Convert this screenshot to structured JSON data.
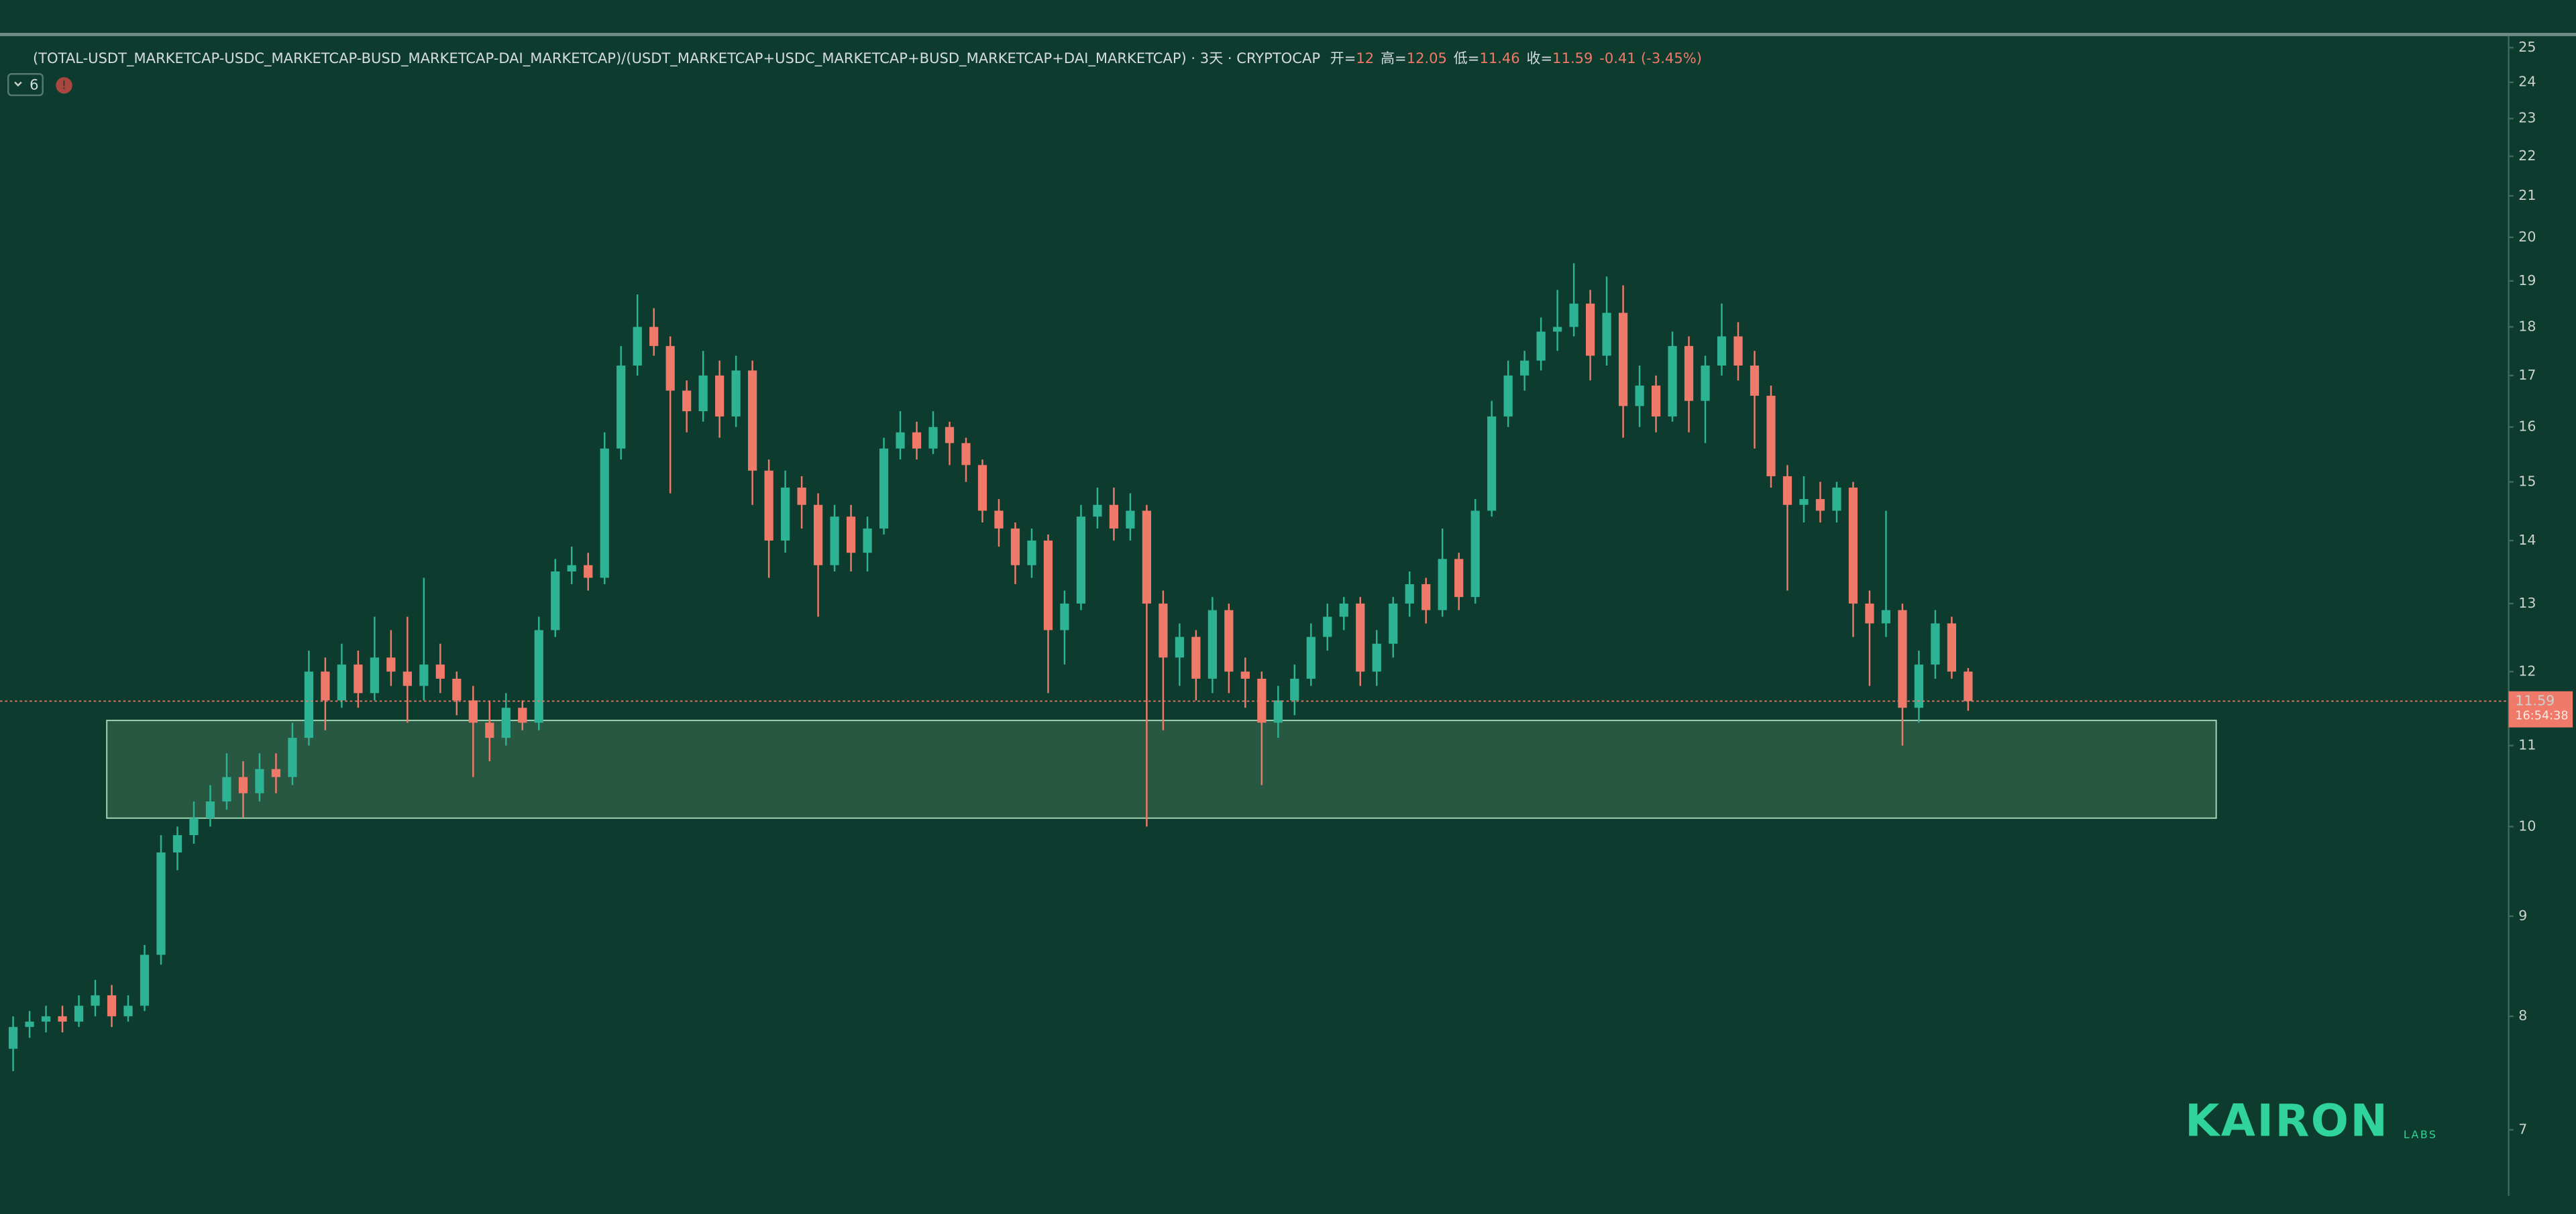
{
  "chart_data": {
    "type": "candlestick",
    "title": "(TOTAL-USDT_MARKETCAP-USDC_MARKETCAP-BUSD_MARKETCAP-DAI_MARKETCAP)/(USDT_MARKETCAP+USDC_MARKETCAP+BUSD_MARKETCAP+DAI_MARKETCAP) · 3天 · CRYPTOCAP",
    "ohlc_labels": [
      "开=",
      "高=",
      "低=",
      "收="
    ],
    "change": -0.41,
    "change_pct": "(-3.45%)",
    "indicator_count": "6",
    "countdown": "16:54:38",
    "watermark": "KAIRON",
    "watermark_sub": "LABS",
    "log_scale": true,
    "up_color": "#2db394",
    "down_color": "#f07a6a",
    "zone": {
      "low": 10.1,
      "high": 11.33,
      "color": "#2e5e45"
    },
    "ylim": [
      6.34,
      25.34
    ],
    "yticks": [
      7,
      8,
      9,
      10,
      11,
      12,
      13,
      14,
      15,
      16,
      17,
      18,
      19,
      20,
      21,
      22,
      23,
      24,
      25
    ],
    "candles": [
      [
        7.7,
        8.0,
        7.5,
        7.9
      ],
      [
        7.9,
        8.05,
        7.8,
        7.95
      ],
      [
        7.95,
        8.1,
        7.85,
        8.0
      ],
      [
        8.0,
        8.1,
        7.85,
        7.95
      ],
      [
        7.95,
        8.2,
        7.9,
        8.1
      ],
      [
        8.1,
        8.35,
        8.0,
        8.2
      ],
      [
        8.2,
        8.3,
        7.9,
        8.0
      ],
      [
        8.0,
        8.2,
        7.95,
        8.1
      ],
      [
        8.1,
        8.7,
        8.05,
        8.6
      ],
      [
        8.6,
        9.9,
        8.5,
        9.7
      ],
      [
        9.7,
        10.0,
        9.5,
        9.9
      ],
      [
        9.9,
        10.3,
        9.8,
        10.1
      ],
      [
        10.1,
        10.5,
        10.0,
        10.3
      ],
      [
        10.3,
        10.9,
        10.2,
        10.6
      ],
      [
        10.6,
        10.8,
        10.1,
        10.4
      ],
      [
        10.4,
        10.9,
        10.3,
        10.7
      ],
      [
        10.7,
        10.9,
        10.4,
        10.6
      ],
      [
        10.6,
        11.3,
        10.5,
        11.1
      ],
      [
        11.1,
        12.3,
        11.0,
        12.0
      ],
      [
        12.0,
        12.2,
        11.2,
        11.6
      ],
      [
        11.6,
        12.4,
        11.5,
        12.1
      ],
      [
        12.1,
        12.3,
        11.5,
        11.7
      ],
      [
        11.7,
        12.8,
        11.6,
        12.2
      ],
      [
        12.2,
        12.6,
        11.8,
        12.0
      ],
      [
        12.0,
        12.8,
        11.3,
        11.8
      ],
      [
        11.8,
        13.4,
        11.6,
        12.1
      ],
      [
        12.1,
        12.4,
        11.7,
        11.9
      ],
      [
        11.9,
        12.0,
        11.4,
        11.6
      ],
      [
        11.6,
        11.8,
        10.6,
        11.3
      ],
      [
        11.3,
        11.6,
        10.8,
        11.1
      ],
      [
        11.1,
        11.7,
        11.0,
        11.5
      ],
      [
        11.5,
        11.6,
        11.2,
        11.3
      ],
      [
        11.3,
        12.8,
        11.2,
        12.6
      ],
      [
        12.6,
        13.7,
        12.5,
        13.5
      ],
      [
        13.5,
        13.9,
        13.3,
        13.6
      ],
      [
        13.6,
        13.8,
        13.2,
        13.4
      ],
      [
        13.4,
        15.9,
        13.3,
        15.6
      ],
      [
        15.6,
        17.6,
        15.4,
        17.2
      ],
      [
        17.2,
        18.7,
        17.0,
        18.0
      ],
      [
        18.0,
        18.4,
        17.4,
        17.6
      ],
      [
        17.6,
        17.8,
        14.8,
        16.7
      ],
      [
        16.7,
        16.9,
        15.9,
        16.3
      ],
      [
        16.3,
        17.5,
        16.1,
        17.0
      ],
      [
        17.0,
        17.3,
        15.8,
        16.2
      ],
      [
        16.2,
        17.4,
        16.0,
        17.1
      ],
      [
        17.1,
        17.3,
        14.6,
        15.2
      ],
      [
        15.2,
        15.4,
        13.4,
        14.0
      ],
      [
        14.0,
        15.2,
        13.8,
        14.9
      ],
      [
        14.9,
        15.1,
        14.2,
        14.6
      ],
      [
        14.6,
        14.8,
        12.8,
        13.6
      ],
      [
        13.6,
        14.6,
        13.5,
        14.4
      ],
      [
        14.4,
        14.6,
        13.5,
        13.8
      ],
      [
        13.8,
        14.4,
        13.5,
        14.2
      ],
      [
        14.2,
        15.8,
        14.1,
        15.6
      ],
      [
        15.6,
        16.3,
        15.4,
        15.9
      ],
      [
        15.9,
        16.1,
        15.4,
        15.6
      ],
      [
        15.6,
        16.3,
        15.5,
        16.0
      ],
      [
        16.0,
        16.1,
        15.3,
        15.7
      ],
      [
        15.7,
        15.8,
        15.0,
        15.3
      ],
      [
        15.3,
        15.4,
        14.3,
        14.5
      ],
      [
        14.5,
        14.7,
        13.9,
        14.2
      ],
      [
        14.2,
        14.3,
        13.3,
        13.6
      ],
      [
        13.6,
        14.2,
        13.4,
        14.0
      ],
      [
        14.0,
        14.1,
        11.7,
        12.6
      ],
      [
        12.6,
        13.2,
        12.1,
        13.0
      ],
      [
        13.0,
        14.6,
        12.9,
        14.4
      ],
      [
        14.4,
        14.9,
        14.2,
        14.6
      ],
      [
        14.6,
        14.9,
        14.0,
        14.2
      ],
      [
        14.2,
        14.8,
        14.0,
        14.5
      ],
      [
        14.5,
        14.6,
        10.0,
        13.0
      ],
      [
        13.0,
        13.2,
        11.2,
        12.2
      ],
      [
        12.2,
        12.7,
        11.8,
        12.5
      ],
      [
        12.5,
        12.6,
        11.6,
        11.9
      ],
      [
        11.9,
        13.1,
        11.7,
        12.9
      ],
      [
        12.9,
        13.0,
        11.7,
        12.0
      ],
      [
        12.0,
        12.2,
        11.5,
        11.9
      ],
      [
        11.9,
        12.0,
        10.5,
        11.3
      ],
      [
        11.3,
        11.8,
        11.1,
        11.6
      ],
      [
        11.6,
        12.1,
        11.4,
        11.9
      ],
      [
        11.9,
        12.7,
        11.8,
        12.5
      ],
      [
        12.5,
        13.0,
        12.3,
        12.8
      ],
      [
        12.8,
        13.1,
        12.6,
        13.0
      ],
      [
        13.0,
        13.1,
        11.8,
        12.0
      ],
      [
        12.0,
        12.6,
        11.8,
        12.4
      ],
      [
        12.4,
        13.1,
        12.2,
        13.0
      ],
      [
        13.0,
        13.5,
        12.8,
        13.3
      ],
      [
        13.3,
        13.4,
        12.7,
        12.9
      ],
      [
        12.9,
        14.2,
        12.8,
        13.7
      ],
      [
        13.7,
        13.8,
        12.9,
        13.1
      ],
      [
        13.1,
        14.7,
        13.0,
        14.5
      ],
      [
        14.5,
        16.5,
        14.4,
        16.2
      ],
      [
        16.2,
        17.3,
        16.0,
        17.0
      ],
      [
        17.0,
        17.5,
        16.7,
        17.3
      ],
      [
        17.3,
        18.2,
        17.1,
        17.9
      ],
      [
        17.9,
        18.8,
        17.5,
        18.0
      ],
      [
        18.0,
        19.4,
        17.8,
        18.5
      ],
      [
        18.5,
        18.8,
        16.9,
        17.4
      ],
      [
        17.4,
        19.1,
        17.2,
        18.3
      ],
      [
        18.3,
        18.9,
        15.8,
        16.4
      ],
      [
        16.4,
        17.2,
        16.0,
        16.8
      ],
      [
        16.8,
        17.0,
        15.9,
        16.2
      ],
      [
        16.2,
        17.9,
        16.1,
        17.6
      ],
      [
        17.6,
        17.8,
        15.9,
        16.5
      ],
      [
        16.5,
        17.4,
        15.7,
        17.2
      ],
      [
        17.2,
        18.5,
        17.0,
        17.8
      ],
      [
        17.8,
        18.1,
        16.9,
        17.2
      ],
      [
        17.2,
        17.5,
        15.6,
        16.6
      ],
      [
        16.6,
        16.8,
        14.9,
        15.1
      ],
      [
        15.1,
        15.3,
        13.2,
        14.6
      ],
      [
        14.6,
        15.1,
        14.3,
        14.7
      ],
      [
        14.7,
        15.0,
        14.3,
        14.5
      ],
      [
        14.5,
        15.0,
        14.3,
        14.9
      ],
      [
        14.9,
        15.0,
        12.5,
        13.0
      ],
      [
        13.0,
        13.2,
        11.8,
        12.7
      ],
      [
        12.7,
        14.5,
        12.5,
        12.9
      ],
      [
        12.9,
        13.0,
        11.0,
        11.5
      ],
      [
        11.5,
        12.3,
        11.3,
        12.1
      ],
      [
        12.1,
        12.9,
        11.9,
        12.7
      ],
      [
        12.7,
        12.8,
        11.9,
        12.0
      ],
      [
        12,
        12.05,
        11.46,
        11.59
      ]
    ]
  }
}
